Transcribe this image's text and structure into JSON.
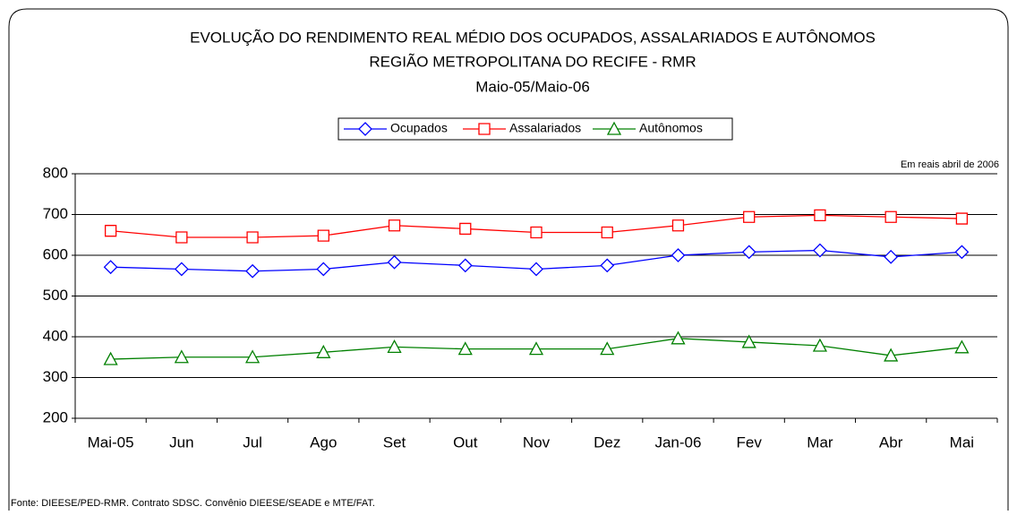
{
  "chart_data": {
    "type": "line",
    "title": "EVOLUÇÃO DO RENDIMENTO REAL MÉDIO DOS OCUPADOS, ASSALARIADOS E AUTÔNOMOS",
    "subtitle": "REGIÃO METROPOLITANA DO RECIFE - RMR",
    "period": "Maio-05/Maio-06",
    "unit_note": "Em reais abril de 2006",
    "source": "Fonte: DIEESE/PED-RMR. Contrato SDSC. Convênio DIEESE/SEADE e MTE/FAT.",
    "categories": [
      "Mai-05",
      "Jun",
      "Jul",
      "Ago",
      "Set",
      "Out",
      "Nov",
      "Dez",
      "Jan-06",
      "Fev",
      "Mar",
      "Abr",
      "Mai"
    ],
    "series": [
      {
        "name": "Ocupados",
        "color": "#0000ff",
        "marker": "diamond",
        "values": [
          571,
          566,
          561,
          566,
          583,
          575,
          566,
          575,
          600,
          608,
          612,
          596,
          608
        ]
      },
      {
        "name": "Assalariados",
        "color": "#ff0000",
        "marker": "square",
        "values": [
          660,
          644,
          644,
          648,
          673,
          665,
          656,
          656,
          673,
          694,
          698,
          694,
          690
        ]
      },
      {
        "name": "Autônomos",
        "color": "#008000",
        "marker": "triangle",
        "values": [
          345,
          350,
          350,
          362,
          375,
          370,
          370,
          370,
          396,
          387,
          378,
          354,
          374
        ]
      }
    ],
    "ylim": [
      200,
      800
    ],
    "yticks": [
      200,
      300,
      400,
      500,
      600,
      700,
      800
    ],
    "grid": true,
    "legend": "top"
  }
}
